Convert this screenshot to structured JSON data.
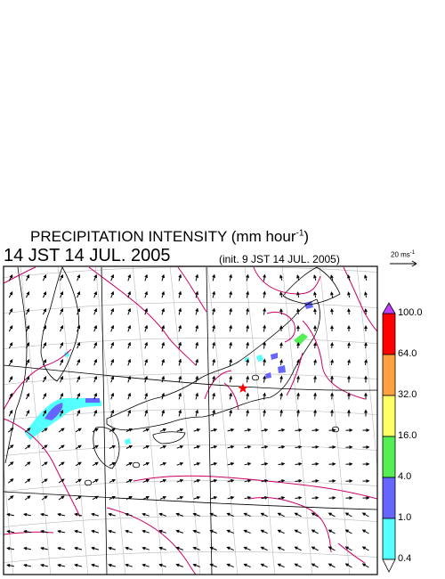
{
  "title": {
    "main": "PRECIPITATION INTENSITY (mm hour",
    "exp": "-1",
    "close": ")"
  },
  "valid_time": "14 JST 14 JUL. 2005",
  "init_time": "(init. 9 JST 14 JUL. 2005)",
  "vector_scale": {
    "text": "20 ms",
    "exp": "-1"
  },
  "colorbar": {
    "labels": [
      "100.0",
      "64.0",
      "32.0",
      "16.0",
      "4.0",
      "1.0",
      "0.4"
    ],
    "colors": [
      "#ff0000",
      "#ffa040",
      "#ffff66",
      "#55ee55",
      "#6666ff",
      "#55ffff"
    ],
    "max_color": "#c040ff",
    "min_color": "#ffffff"
  },
  "colors": {
    "contour": "#cc0066",
    "graticule": "#bbbbbb",
    "coast": "#000000",
    "marker": "#ff0000"
  },
  "marker": {
    "icon": "star-marker"
  }
}
